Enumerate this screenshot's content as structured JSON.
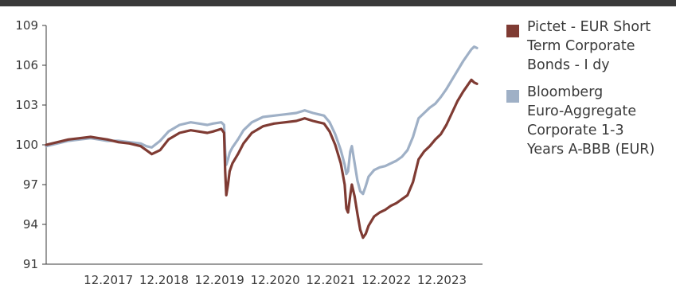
{
  "chart_data": {
    "type": "line",
    "title": "",
    "xlabel": "",
    "ylabel": "",
    "x_range": [
      2016.8,
      2024.65
    ],
    "ylim": [
      91,
      109
    ],
    "y_ticks": [
      91,
      94,
      97,
      100,
      103,
      106,
      109
    ],
    "x_ticks": [
      {
        "x": 2017.92,
        "label": "12.2017"
      },
      {
        "x": 2018.92,
        "label": "12.2018"
      },
      {
        "x": 2019.92,
        "label": "12.2019"
      },
      {
        "x": 2020.92,
        "label": "12.2020"
      },
      {
        "x": 2021.92,
        "label": "12.2021"
      },
      {
        "x": 2022.92,
        "label": "12.2022"
      },
      {
        "x": 2023.92,
        "label": "12.2023"
      }
    ],
    "grid": false,
    "legend_position": "right",
    "series": [
      {
        "name": "Pictet - EUR Short Term Corporate Bonds - I dy",
        "color": "#7f3b33",
        "points": [
          [
            2016.8,
            100.0
          ],
          [
            2017.0,
            100.2
          ],
          [
            2017.2,
            100.4
          ],
          [
            2017.4,
            100.5
          ],
          [
            2017.6,
            100.6
          ],
          [
            2017.75,
            100.5
          ],
          [
            2017.9,
            100.4
          ],
          [
            2018.1,
            100.2
          ],
          [
            2018.3,
            100.1
          ],
          [
            2018.5,
            99.9
          ],
          [
            2018.6,
            99.6
          ],
          [
            2018.7,
            99.3
          ],
          [
            2018.85,
            99.6
          ],
          [
            2019.0,
            100.4
          ],
          [
            2019.2,
            100.9
          ],
          [
            2019.4,
            101.1
          ],
          [
            2019.55,
            101.0
          ],
          [
            2019.7,
            100.9
          ],
          [
            2019.8,
            101.0
          ],
          [
            2019.95,
            101.2
          ],
          [
            2020.0,
            100.9
          ],
          [
            2020.02,
            98.0
          ],
          [
            2020.04,
            96.2
          ],
          [
            2020.07,
            97.0
          ],
          [
            2020.1,
            98.0
          ],
          [
            2020.15,
            98.6
          ],
          [
            2020.25,
            99.3
          ],
          [
            2020.35,
            100.1
          ],
          [
            2020.5,
            100.9
          ],
          [
            2020.7,
            101.4
          ],
          [
            2020.9,
            101.6
          ],
          [
            2021.1,
            101.7
          ],
          [
            2021.3,
            101.8
          ],
          [
            2021.45,
            102.0
          ],
          [
            2021.6,
            101.8
          ],
          [
            2021.7,
            101.7
          ],
          [
            2021.8,
            101.6
          ],
          [
            2021.9,
            101.0
          ],
          [
            2022.0,
            100.0
          ],
          [
            2022.1,
            98.6
          ],
          [
            2022.17,
            97.0
          ],
          [
            2022.2,
            95.2
          ],
          [
            2022.23,
            94.9
          ],
          [
            2022.27,
            96.2
          ],
          [
            2022.3,
            97.0
          ],
          [
            2022.35,
            96.1
          ],
          [
            2022.4,
            94.8
          ],
          [
            2022.45,
            93.6
          ],
          [
            2022.5,
            93.0
          ],
          [
            2022.55,
            93.3
          ],
          [
            2022.6,
            93.9
          ],
          [
            2022.7,
            94.6
          ],
          [
            2022.8,
            94.9
          ],
          [
            2022.9,
            95.1
          ],
          [
            2023.0,
            95.4
          ],
          [
            2023.1,
            95.6
          ],
          [
            2023.2,
            95.9
          ],
          [
            2023.3,
            96.2
          ],
          [
            2023.4,
            97.2
          ],
          [
            2023.5,
            98.9
          ],
          [
            2023.6,
            99.5
          ],
          [
            2023.7,
            99.9
          ],
          [
            2023.8,
            100.4
          ],
          [
            2023.9,
            100.8
          ],
          [
            2024.0,
            101.5
          ],
          [
            2024.1,
            102.4
          ],
          [
            2024.2,
            103.3
          ],
          [
            2024.3,
            104.0
          ],
          [
            2024.4,
            104.6
          ],
          [
            2024.45,
            104.9
          ],
          [
            2024.5,
            104.7
          ],
          [
            2024.55,
            104.6
          ]
        ]
      },
      {
        "name": "Bloomberg Euro-Aggregate Corporate 1-3 Years A-BBB (EUR)",
        "color": "#9fb0c6",
        "points": [
          [
            2016.8,
            99.9
          ],
          [
            2017.0,
            100.1
          ],
          [
            2017.2,
            100.3
          ],
          [
            2017.4,
            100.4
          ],
          [
            2017.6,
            100.5
          ],
          [
            2017.75,
            100.4
          ],
          [
            2017.9,
            100.3
          ],
          [
            2018.1,
            100.3
          ],
          [
            2018.3,
            100.2
          ],
          [
            2018.5,
            100.1
          ],
          [
            2018.6,
            99.9
          ],
          [
            2018.7,
            99.8
          ],
          [
            2018.85,
            100.3
          ],
          [
            2019.0,
            101.0
          ],
          [
            2019.2,
            101.5
          ],
          [
            2019.4,
            101.7
          ],
          [
            2019.55,
            101.6
          ],
          [
            2019.7,
            101.5
          ],
          [
            2019.8,
            101.6
          ],
          [
            2019.95,
            101.7
          ],
          [
            2020.0,
            101.5
          ],
          [
            2020.02,
            99.5
          ],
          [
            2020.04,
            98.5
          ],
          [
            2020.07,
            98.9
          ],
          [
            2020.1,
            99.4
          ],
          [
            2020.15,
            99.8
          ],
          [
            2020.25,
            100.4
          ],
          [
            2020.35,
            101.1
          ],
          [
            2020.5,
            101.7
          ],
          [
            2020.7,
            102.1
          ],
          [
            2020.9,
            102.2
          ],
          [
            2021.1,
            102.3
          ],
          [
            2021.3,
            102.4
          ],
          [
            2021.45,
            102.6
          ],
          [
            2021.6,
            102.4
          ],
          [
            2021.7,
            102.3
          ],
          [
            2021.8,
            102.2
          ],
          [
            2021.9,
            101.7
          ],
          [
            2022.0,
            100.8
          ],
          [
            2022.1,
            99.6
          ],
          [
            2022.17,
            98.5
          ],
          [
            2022.2,
            97.8
          ],
          [
            2022.23,
            98.0
          ],
          [
            2022.27,
            99.5
          ],
          [
            2022.3,
            99.9
          ],
          [
            2022.35,
            98.6
          ],
          [
            2022.4,
            97.3
          ],
          [
            2022.45,
            96.5
          ],
          [
            2022.5,
            96.3
          ],
          [
            2022.55,
            96.9
          ],
          [
            2022.6,
            97.6
          ],
          [
            2022.7,
            98.1
          ],
          [
            2022.8,
            98.3
          ],
          [
            2022.9,
            98.4
          ],
          [
            2023.0,
            98.6
          ],
          [
            2023.1,
            98.8
          ],
          [
            2023.2,
            99.1
          ],
          [
            2023.3,
            99.6
          ],
          [
            2023.4,
            100.6
          ],
          [
            2023.5,
            102.0
          ],
          [
            2023.6,
            102.4
          ],
          [
            2023.7,
            102.8
          ],
          [
            2023.8,
            103.1
          ],
          [
            2023.9,
            103.6
          ],
          [
            2024.0,
            104.2
          ],
          [
            2024.1,
            104.9
          ],
          [
            2024.2,
            105.6
          ],
          [
            2024.3,
            106.3
          ],
          [
            2024.4,
            106.9
          ],
          [
            2024.45,
            107.2
          ],
          [
            2024.5,
            107.4
          ],
          [
            2024.55,
            107.3
          ]
        ]
      }
    ]
  },
  "legend": {
    "items": [
      {
        "lines": [
          "Pictet - EUR Short",
          "Term Corporate",
          "Bonds - I dy"
        ],
        "color": "#7f3b33"
      },
      {
        "lines": [
          "Bloomberg",
          "Euro-Aggregate",
          "Corporate 1-3",
          "Years A-BBB (EUR)"
        ],
        "color": "#9fb0c6"
      }
    ]
  }
}
